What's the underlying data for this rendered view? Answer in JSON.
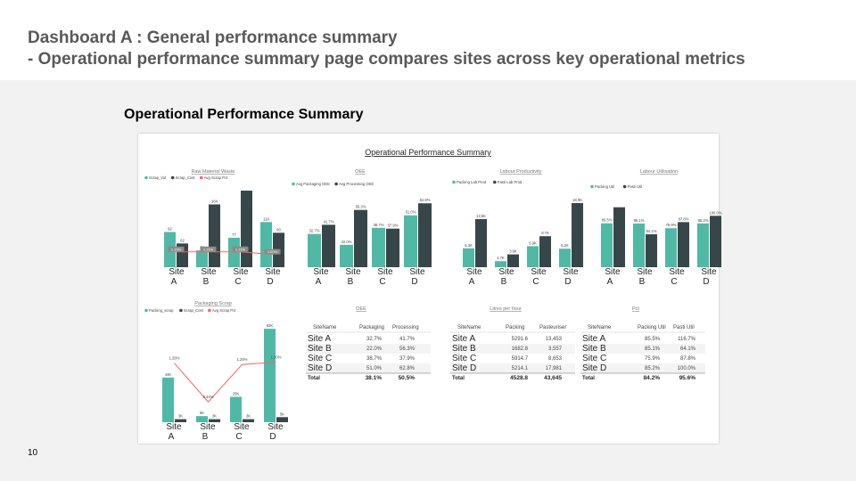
{
  "header": {
    "title_line1": "Dashboard A : General performance summary",
    "title_line2": "- Operational performance summary page compares sites across key operational metrics"
  },
  "section_title": "Operational Performance Summary",
  "page_number": "10",
  "colors": {
    "teal": "#4fb9a6",
    "dark": "#374649",
    "red": "#fd625e",
    "grid": "#e6e6e6"
  },
  "dashboard": {
    "title": "Operational Performance Summary",
    "tables": [
      {
        "title": "OEE",
        "columns": [
          "SiteName",
          "Packaging",
          "Processing"
        ],
        "rows": [
          [
            "Site A",
            "32.7%",
            "41.7%"
          ],
          [
            "Site B",
            "22.0%",
            "56.3%"
          ],
          [
            "Site C",
            "38.7%",
            "37.9%"
          ],
          [
            "Site D",
            "51.0%",
            "62.8%"
          ]
        ],
        "total": [
          "Total",
          "38.1%",
          "50.5%"
        ]
      },
      {
        "title": "Litres per hour",
        "columns": [
          "SiteName",
          "Packing",
          "Pasteuriser"
        ],
        "rows": [
          [
            "Site A",
            "5291.6",
            "13,453"
          ],
          [
            "Site B",
            "1682.8",
            "3,557"
          ],
          [
            "Site C",
            "5914.7",
            "8,653"
          ],
          [
            "Site D",
            "5214.1",
            "17,981"
          ]
        ],
        "total": [
          "Total",
          "4528.8",
          "43,645"
        ]
      },
      {
        "title": "Pct",
        "columns": [
          "SiteName",
          "Packing Util",
          "Pasti Util"
        ],
        "rows": [
          [
            "Site A",
            "85.5%",
            "116.7%"
          ],
          [
            "Site B",
            "85.1%",
            "64.1%"
          ],
          [
            "Site C",
            "75.9%",
            "87.8%"
          ],
          [
            "Site D",
            "85.2%",
            "100.0%"
          ]
        ],
        "total": [
          "Total",
          "84.2%",
          "95.6%"
        ]
      }
    ]
  },
  "chart_data": [
    {
      "type": "bar",
      "title": "Raw Material Waste",
      "categories": [
        "Site A",
        "Site B",
        "Site C",
        "Site D"
      ],
      "series": [
        {
          "name": "Scrap_Vol",
          "values": [
            92,
            44,
            77,
            118
          ]
        },
        {
          "name": "Scrap_Cost",
          "values": [
            62,
            164,
            200,
            90
          ]
        },
        {
          "name": "Avg Scrap Pct",
          "kind": "line",
          "values": [
            1.2,
            1.2,
            1.2,
            1.0
          ]
        }
      ],
      "data_labels": [
        [
          "92",
          "44",
          "77",
          "118"
        ],
        [
          "62",
          "164",
          "",
          "90"
        ]
      ],
      "line_labels": [
        "1.15%",
        "1.15%",
        "1.15%",
        "1.00%"
      ],
      "legend": "top-left"
    },
    {
      "type": "bar",
      "title": "OEE",
      "categories": [
        "Site A",
        "Site B",
        "Site C",
        "Site D"
      ],
      "series": [
        {
          "name": "Avg Packaging OEE",
          "values": [
            32.7,
            22.0,
            38.7,
            51.0
          ]
        },
        {
          "name": "Avg Processing OEE",
          "values": [
            41.7,
            56.3,
            37.9,
            62.8
          ]
        }
      ],
      "data_labels": [
        [
          "32.7%",
          "22.0%",
          "38.7%",
          "51.0%"
        ],
        [
          "41.7%",
          "56.3%",
          "37.9%",
          "62.8%"
        ]
      ],
      "legend": "top-left"
    },
    {
      "type": "bar",
      "title": "Labour Productivity",
      "categories": [
        "Site A",
        "Site B",
        "Site C",
        "Site D"
      ],
      "series": [
        {
          "name": "Packing Lab Prod",
          "values": [
            5300,
            1700,
            5900,
            5200
          ]
        },
        {
          "name": "Pasti Lab Prod",
          "values": [
            13500,
            3600,
            8700,
            18000
          ]
        }
      ],
      "data_labels": [
        [
          "5.3K",
          "1.7K",
          "5.9K",
          "5.2K"
        ],
        [
          "13.5K",
          "3.6K",
          "8.7K",
          "18.0K"
        ]
      ],
      "legend": "top-left"
    },
    {
      "type": "bar",
      "title": "Labour Utilisation",
      "categories": [
        "Site A",
        "Site B",
        "Site C",
        "Site D"
      ],
      "series": [
        {
          "name": "Packing Util",
          "values": [
            85.5,
            85.1,
            75.9,
            85.2
          ]
        },
        {
          "name": "Pasti Util",
          "values": [
            116.7,
            64.1,
            87.8,
            100.0
          ]
        }
      ],
      "data_labels": [
        [
          "85.5%",
          "85.1%",
          "75.9%",
          "85.2%"
        ],
        [
          "",
          "64.1%",
          "87.8%",
          "100.0%"
        ]
      ],
      "legend": "top-left"
    },
    {
      "type": "bar",
      "title": "Packaging Scrap",
      "categories": [
        "Site A",
        "Site B",
        "Site C",
        "Site D"
      ],
      "series": [
        {
          "name": "Packing_scrap",
          "values": [
            44000,
            6000,
            25000,
            92000
          ]
        },
        {
          "name": "Scrap_Cost",
          "values": [
            3000,
            3000,
            3000,
            5000
          ]
        },
        {
          "name": "Avg Scrap Pct",
          "kind": "line",
          "values": [
            1.28,
            0.44,
            1.25,
            1.3
          ]
        }
      ],
      "data_labels": [
        [
          "44K",
          "6K",
          "25K",
          "92K"
        ],
        [
          "3K",
          "3K",
          "3K",
          "5K"
        ]
      ],
      "line_labels": [
        "1.28%",
        "0.44%",
        "1.25%",
        "1.30%"
      ],
      "legend": "top-left"
    }
  ]
}
